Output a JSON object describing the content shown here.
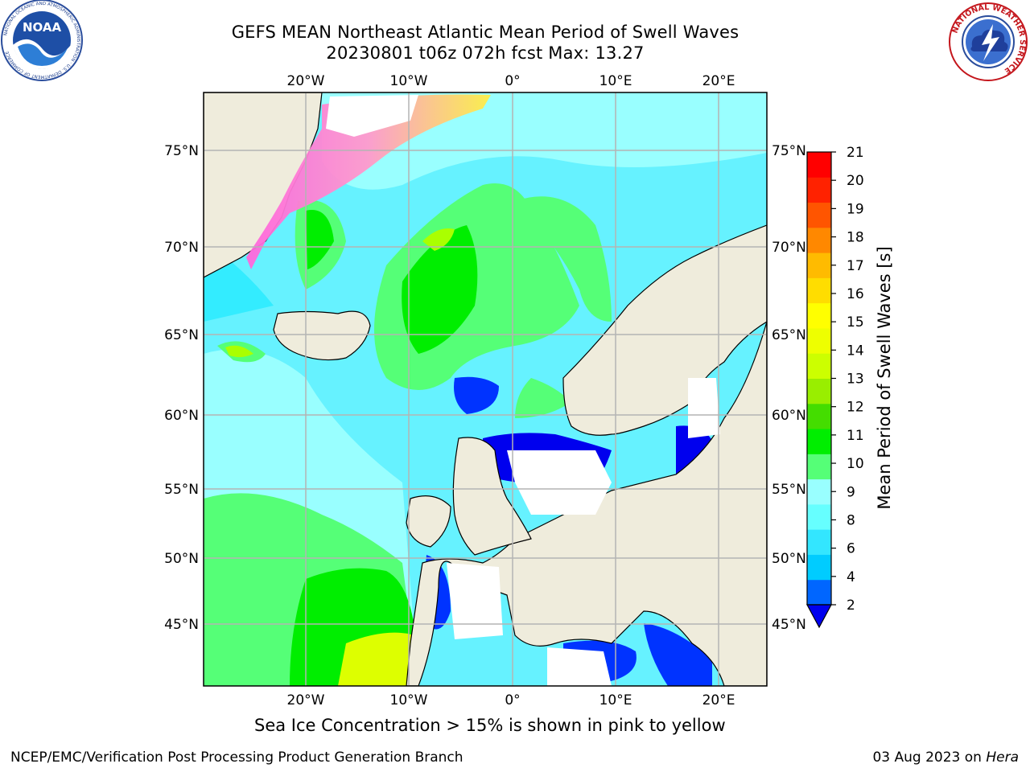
{
  "header": {
    "title_line1": "GEFS MEAN Northeast Atlantic Mean Period of Swell Waves",
    "title_line2": "20230801 t06z 072h fcst   Max: 13.27"
  },
  "logos": {
    "left": "NOAA",
    "left_ring_text": "NATIONAL OCEANIC AND ATMOSPHERIC ADMINISTRATION · U.S. DEPARTMENT OF COMMERCE",
    "right_ring_text": "NATIONAL WEATHER SERVICE"
  },
  "map": {
    "lon_ticks": [
      "20°W",
      "10°W",
      "0°",
      "10°E",
      "20°E"
    ],
    "lat_ticks": [
      "75°N",
      "70°N",
      "65°N",
      "60°N",
      "55°N",
      "50°N",
      "45°N"
    ],
    "land_color": "#efecdc",
    "ocean_levels_hex": [
      "#0033ff",
      "#00e5ff",
      "#33ecff",
      "#99ffff",
      "#55ff77",
      "#00ee00",
      "#aaff00",
      "#ffff00",
      "#ff99ff"
    ]
  },
  "colorbar": {
    "label": "Mean Period of Swell Waves [s]",
    "ticks": [
      "2",
      "4",
      "6",
      "8",
      "9",
      "10",
      "11",
      "12",
      "13",
      "14",
      "15",
      "16",
      "17",
      "18",
      "19",
      "20",
      "21"
    ],
    "colors": [
      "#0066ff",
      "#00ccff",
      "#33e6ff",
      "#66ffff",
      "#99ffff",
      "#55ff77",
      "#00ee00",
      "#44dd00",
      "#99ee00",
      "#ccff00",
      "#eeff00",
      "#ffff00",
      "#ffdd00",
      "#ffbb00",
      "#ff8800",
      "#ff5500",
      "#ff2200",
      "#ff0000"
    ],
    "underflow_color": "#0000ee"
  },
  "footnote": "Sea Ice Concentration > 15% is shown in pink to yellow",
  "footer": {
    "left": "NCEP/EMC/Verification Post Processing Product Generation Branch",
    "right_date": "03 Aug 2023 on ",
    "right_host": "Hera"
  }
}
